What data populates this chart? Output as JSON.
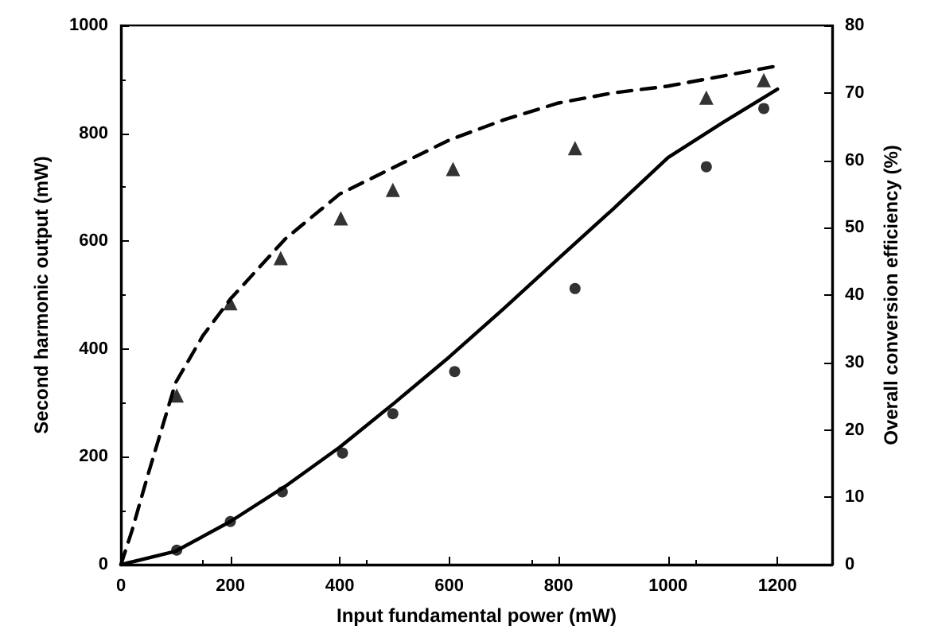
{
  "chart_data": {
    "type": "scatter",
    "xlabel": "Input fundamental power (mW)",
    "ylabel": "Second harmonic output (mW)",
    "y2label": "Overall conversion efficiency (%)",
    "xlim": [
      0,
      1300
    ],
    "xticks": [
      0,
      200,
      400,
      600,
      800,
      1000,
      1200
    ],
    "ylim": [
      0,
      1000
    ],
    "yticks": [
      0,
      200,
      400,
      600,
      800,
      1000
    ],
    "y2lim": [
      0,
      80
    ],
    "y2ticks": [
      0,
      10,
      20,
      30,
      40,
      50,
      60,
      70,
      80
    ],
    "grid": false,
    "series": [
      {
        "marker": "circle",
        "color": "#000000",
        "x": [
          102,
          200,
          295,
          405,
          497,
          610,
          830,
          1070,
          1175
        ],
        "values": [
          27,
          80,
          135,
          207,
          280,
          358,
          512,
          738,
          846
        ]
      },
      {
        "marker": "triangle",
        "axis": "y2",
        "color": "#000000",
        "x": [
          102,
          200,
          292,
          402,
          497,
          607,
          830,
          1070,
          1175
        ],
        "values": [
          25.1,
          38.8,
          45.5,
          51.4,
          55.6,
          58.7,
          61.8,
          69.3,
          71.9
        ]
      },
      {
        "type": "line",
        "marker": "none",
        "line_style": "solid",
        "color": "#000000",
        "x": [
          0,
          100,
          200,
          300,
          400,
          500,
          600,
          700,
          800,
          900,
          1000,
          1100,
          1200
        ],
        "values": [
          0,
          25,
          80,
          145,
          218,
          300,
          385,
          475,
          568,
          660,
          755,
          820,
          882
        ]
      },
      {
        "type": "line",
        "marker": "none",
        "line_style": "dashed",
        "axis": "y2",
        "color": "#000000",
        "x": [
          0,
          20,
          50,
          100,
          150,
          200,
          300,
          400,
          500,
          600,
          700,
          800,
          900,
          1000,
          1100,
          1200
        ],
        "values": [
          0,
          5,
          13.5,
          27,
          34,
          39.4,
          48.3,
          55,
          59,
          63,
          66,
          68.5,
          70,
          71,
          72.5,
          74
        ]
      }
    ]
  }
}
